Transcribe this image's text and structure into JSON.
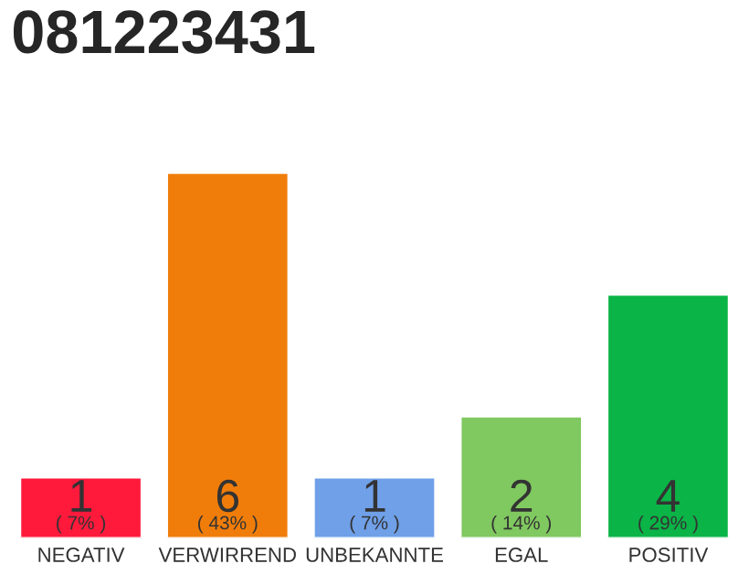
{
  "chart_data": {
    "type": "bar",
    "title": "081223431",
    "categories": [
      "NEGATIV",
      "VERWIRREND",
      "UNBEKANNTE",
      "EGAL",
      "POSITIV"
    ],
    "values": [
      1,
      6,
      1,
      2,
      4
    ],
    "colors": [
      "#ff1a3c",
      "#f07d0a",
      "#6fa0e8",
      "#80c860",
      "#0ab446"
    ],
    "ylim": [
      0,
      6
    ],
    "tick_labels": "x",
    "data_labels": true,
    "grid": false,
    "legend": false,
    "annotations": [
      "( 7% )",
      "( 43% )",
      "( 7% )",
      "( 14% )",
      "( 29% )"
    ]
  }
}
